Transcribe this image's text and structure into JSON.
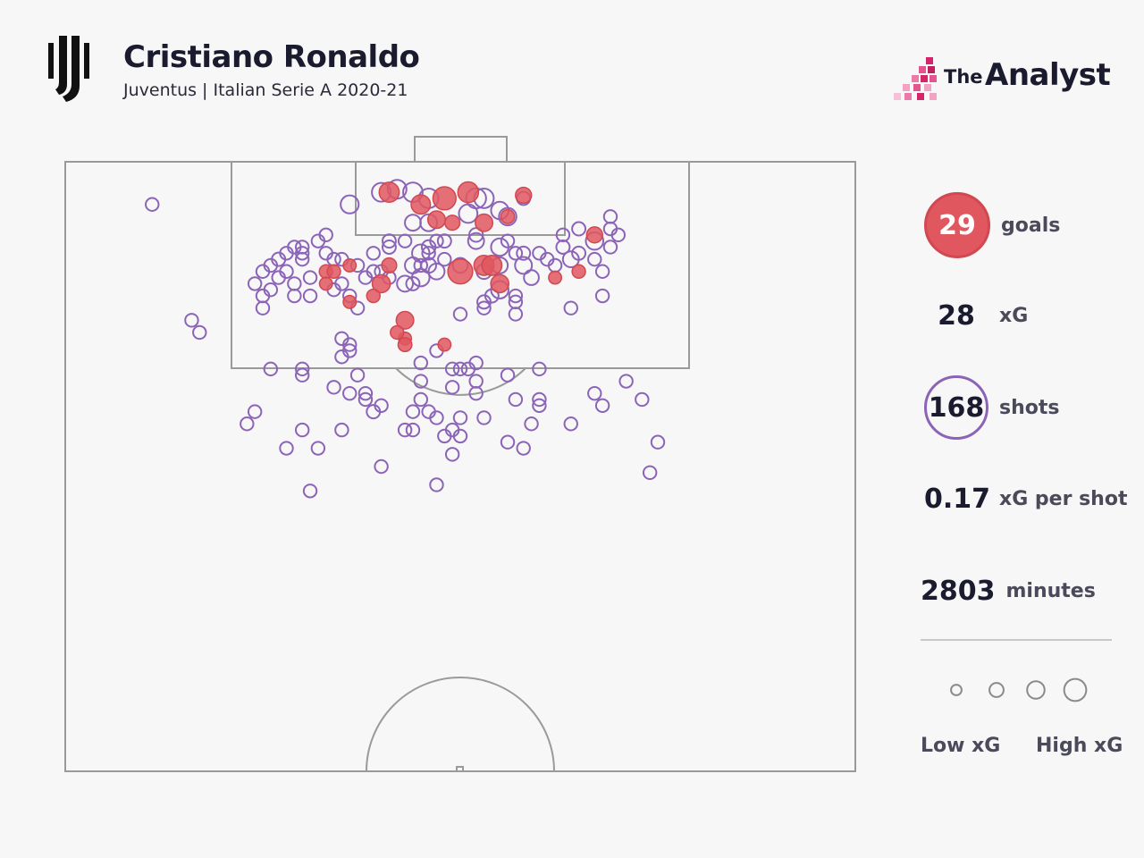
{
  "header": {
    "title": "Cristiano Ronaldo",
    "subtitle": "Juventus | Italian Serie A 2020-21",
    "brand_the": "The",
    "brand_name": "Analyst"
  },
  "colors": {
    "goal": "#e1575f",
    "shot": "#8b64b8",
    "pitch_line": "#9a9a9a",
    "background": "#f7f7f7"
  },
  "icons": {
    "club": "juventus-logo-icon",
    "brand": "the-analyst-logo-icon"
  },
  "stats": {
    "goals": {
      "value": "29",
      "label": "goals"
    },
    "xg": {
      "value": "28",
      "label": "xG"
    },
    "shots": {
      "value": "168",
      "label": "shots"
    },
    "xg_per_shot": {
      "value": "0.17",
      "label": "xG per shot"
    },
    "minutes": {
      "value": "2803",
      "label": "minutes"
    }
  },
  "legend": {
    "low_label": "Low xG",
    "high_label": "High xG",
    "xg_levels": [
      0.03,
      0.1,
      0.2,
      0.4
    ]
  },
  "chart_data": {
    "type": "scatter",
    "series": [
      {
        "name": "goals",
        "points": [
          [
            45,
            7,
            0.27
          ],
          [
            41,
            5,
            0.3
          ],
          [
            48,
            6,
            0.45
          ],
          [
            51,
            5,
            0.33
          ],
          [
            58,
            5.5,
            0.15
          ],
          [
            47,
            9.5,
            0.2
          ],
          [
            49,
            10,
            0.12
          ],
          [
            53,
            10,
            0.2
          ],
          [
            56,
            9,
            0.09
          ],
          [
            41,
            17,
            0.12
          ],
          [
            53,
            17,
            0.3
          ],
          [
            54,
            17,
            0.3
          ],
          [
            55,
            20,
            0.22
          ],
          [
            50,
            18,
            0.55
          ],
          [
            40,
            20,
            0.22
          ],
          [
            67,
            12,
            0.15
          ],
          [
            65,
            18,
            0.08
          ],
          [
            62,
            19,
            0.07
          ],
          [
            36,
            17,
            0.07
          ],
          [
            39,
            22,
            0.08
          ],
          [
            43,
            26,
            0.2
          ],
          [
            43,
            29,
            0.07
          ],
          [
            33,
            18,
            0.08
          ],
          [
            33,
            20,
            0.07
          ],
          [
            36,
            23,
            0.07
          ],
          [
            43,
            30,
            0.09
          ],
          [
            42,
            28,
            0.08
          ],
          [
            48,
            30,
            0.07
          ],
          [
            34,
            18,
            0.08
          ]
        ]
      },
      {
        "name": "shots",
        "points": [
          [
            40,
            5,
            0.25
          ],
          [
            42,
            4.5,
            0.25
          ],
          [
            44,
            5,
            0.28
          ],
          [
            46,
            6,
            0.28
          ],
          [
            36,
            7,
            0.22
          ],
          [
            52,
            6,
            0.3
          ],
          [
            53,
            6,
            0.28
          ],
          [
            55,
            8,
            0.2
          ],
          [
            56,
            9,
            0.2
          ],
          [
            51,
            8.5,
            0.24
          ],
          [
            58,
            6,
            0.08
          ],
          [
            44,
            10,
            0.15
          ],
          [
            46,
            10,
            0.18
          ],
          [
            67,
            13,
            0.2
          ],
          [
            65,
            11,
            0.08
          ],
          [
            63,
            12,
            0.07
          ],
          [
            64,
            16,
            0.15
          ],
          [
            65,
            15,
            0.08
          ],
          [
            63,
            14,
            0.08
          ],
          [
            62,
            17,
            0.07
          ],
          [
            67,
            16,
            0.07
          ],
          [
            68,
            22,
            0.07
          ],
          [
            64,
            24,
            0.07
          ],
          [
            58,
            15,
            0.08
          ],
          [
            55,
            14,
            0.2
          ],
          [
            58,
            17,
            0.18
          ],
          [
            52,
            13,
            0.15
          ],
          [
            52,
            12,
            0.09
          ],
          [
            46,
            14,
            0.09
          ],
          [
            48,
            13,
            0.08
          ],
          [
            45,
            15,
            0.2
          ],
          [
            44,
            17,
            0.15
          ],
          [
            46,
            17,
            0.12
          ],
          [
            47,
            18,
            0.15
          ],
          [
            45,
            19,
            0.2
          ],
          [
            43,
            20,
            0.15
          ],
          [
            44,
            20,
            0.08
          ],
          [
            53,
            18,
            0.12
          ],
          [
            55,
            21,
            0.2
          ],
          [
            54,
            22,
            0.08
          ],
          [
            53,
            23,
            0.08
          ],
          [
            57,
            23,
            0.07
          ],
          [
            46,
            15,
            0.07
          ],
          [
            45,
            17,
            0.07
          ],
          [
            33,
            12,
            0.07
          ],
          [
            32,
            13,
            0.07
          ],
          [
            30,
            14,
            0.07
          ],
          [
            28,
            15,
            0.07
          ],
          [
            27,
            16,
            0.08
          ],
          [
            26,
            17,
            0.07
          ],
          [
            25,
            18,
            0.07
          ],
          [
            24,
            20,
            0.07
          ],
          [
            27,
            19,
            0.07
          ],
          [
            28,
            18,
            0.07
          ],
          [
            29,
            20,
            0.07
          ],
          [
            30,
            16,
            0.07
          ],
          [
            31,
            19,
            0.07
          ],
          [
            31,
            22,
            0.07
          ],
          [
            29,
            22,
            0.07
          ],
          [
            35,
            20,
            0.07
          ],
          [
            34,
            21,
            0.07
          ],
          [
            36,
            22,
            0.07
          ],
          [
            37,
            24,
            0.07
          ],
          [
            25,
            22,
            0.07
          ],
          [
            25,
            24,
            0.07
          ],
          [
            26,
            21,
            0.07
          ],
          [
            29,
            14,
            0.07
          ],
          [
            30,
            15,
            0.07
          ],
          [
            16,
            26,
            0.07
          ],
          [
            17,
            28,
            0.07
          ],
          [
            11,
            7,
            0.07
          ],
          [
            50,
            25,
            0.07
          ],
          [
            53,
            24,
            0.07
          ],
          [
            35,
            29,
            0.07
          ],
          [
            36,
            30,
            0.07
          ],
          [
            35,
            32,
            0.07
          ],
          [
            36,
            31,
            0.07
          ],
          [
            26,
            34,
            0.07
          ],
          [
            30,
            34,
            0.07
          ],
          [
            30,
            35,
            0.07
          ],
          [
            37,
            35,
            0.07
          ],
          [
            45,
            33,
            0.07
          ],
          [
            47,
            31,
            0.07
          ],
          [
            49,
            34,
            0.07
          ],
          [
            51,
            34,
            0.07
          ],
          [
            52,
            33,
            0.07
          ],
          [
            60,
            34,
            0.07
          ],
          [
            34,
            37,
            0.07
          ],
          [
            36,
            38,
            0.07
          ],
          [
            38,
            39,
            0.07
          ],
          [
            38,
            38,
            0.07
          ],
          [
            45,
            36,
            0.07
          ],
          [
            49,
            37,
            0.07
          ],
          [
            52,
            36,
            0.07
          ],
          [
            52,
            38,
            0.07
          ],
          [
            57,
            39,
            0.07
          ],
          [
            60,
            39,
            0.07
          ],
          [
            60,
            40,
            0.07
          ],
          [
            67,
            38,
            0.07
          ],
          [
            68,
            40,
            0.07
          ],
          [
            71,
            36,
            0.07
          ],
          [
            73,
            39,
            0.07
          ],
          [
            40,
            40,
            0.07
          ],
          [
            45,
            39,
            0.07
          ],
          [
            39,
            41,
            0.08
          ],
          [
            44,
            41,
            0.07
          ],
          [
            46,
            41,
            0.07
          ],
          [
            47,
            42,
            0.07
          ],
          [
            50,
            42,
            0.07
          ],
          [
            23,
            43,
            0.07
          ],
          [
            30,
            44,
            0.07
          ],
          [
            35,
            44,
            0.07
          ],
          [
            43,
            44,
            0.07
          ],
          [
            44,
            44,
            0.07
          ],
          [
            49,
            44,
            0.07
          ],
          [
            53,
            42,
            0.07
          ],
          [
            59,
            43,
            0.07
          ],
          [
            64,
            43,
            0.07
          ],
          [
            24,
            41,
            0.07
          ],
          [
            28,
            47,
            0.07
          ],
          [
            32,
            47,
            0.07
          ],
          [
            48,
            45,
            0.07
          ],
          [
            50,
            45,
            0.07
          ],
          [
            56,
            46,
            0.07
          ],
          [
            58,
            47,
            0.07
          ],
          [
            75,
            46,
            0.07
          ],
          [
            49,
            48,
            0.07
          ],
          [
            40,
            50,
            0.07
          ],
          [
            47,
            53,
            0.07
          ],
          [
            31,
            54,
            0.07
          ],
          [
            74,
            51,
            0.07
          ],
          [
            55,
            17,
            0.15
          ],
          [
            59,
            19,
            0.12
          ],
          [
            50,
            17,
            0.12
          ],
          [
            37,
            17,
            0.07
          ],
          [
            39,
            15,
            0.07
          ],
          [
            41,
            13,
            0.08
          ],
          [
            41,
            14,
            0.08
          ],
          [
            33,
            15,
            0.07
          ],
          [
            34,
            16,
            0.07
          ],
          [
            35,
            16,
            0.07
          ],
          [
            43,
            13,
            0.07
          ],
          [
            56,
            13,
            0.07
          ],
          [
            47,
            13,
            0.07
          ],
          [
            48,
            16,
            0.07
          ],
          [
            57,
            15,
            0.07
          ],
          [
            60,
            15,
            0.07
          ],
          [
            61,
            16,
            0.07
          ],
          [
            68,
            18,
            0.07
          ],
          [
            69,
            14,
            0.07
          ],
          [
            69,
            11,
            0.07
          ],
          [
            69,
            9,
            0.07
          ],
          [
            70,
            12,
            0.07
          ],
          [
            57,
            22,
            0.07
          ],
          [
            57,
            25,
            0.07
          ],
          [
            50,
            34,
            0.07
          ],
          [
            56,
            35,
            0.07
          ],
          [
            38,
            19,
            0.07
          ],
          [
            39,
            18,
            0.07
          ],
          [
            40,
            18,
            0.07
          ],
          [
            41,
            19,
            0.07
          ]
        ]
      }
    ]
  }
}
